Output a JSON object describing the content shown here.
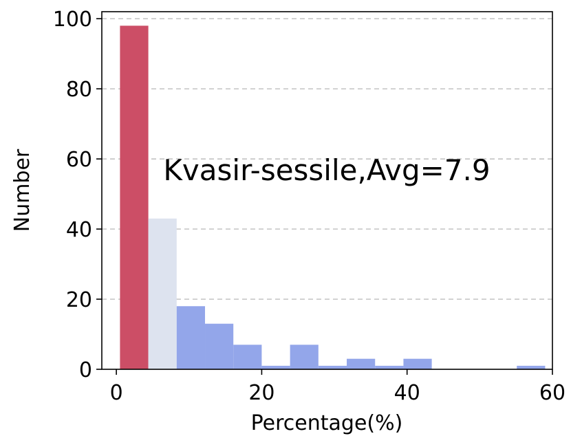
{
  "chart_data": {
    "type": "bar",
    "xlabel": "Percentage(%)",
    "ylabel": "Number",
    "annotation": "Kvasir-sessile,Avg=7.9",
    "xlim": [
      -2,
      60
    ],
    "ylim": [
      0,
      102
    ],
    "xticks": [
      0,
      20,
      40,
      60
    ],
    "yticks": [
      0,
      20,
      40,
      60,
      80,
      100
    ],
    "grid": "horizontal dashed",
    "bins": [
      {
        "x0": 0.5,
        "x1": 4.4,
        "value": 98,
        "color": "#cc4e66"
      },
      {
        "x0": 4.4,
        "x1": 8.3,
        "value": 43,
        "color": "#dde3ef"
      },
      {
        "x0": 8.3,
        "x1": 12.2,
        "value": 18,
        "color": "#93a6ea"
      },
      {
        "x0": 12.2,
        "x1": 16.1,
        "value": 13,
        "color": "#93a6ea"
      },
      {
        "x0": 16.1,
        "x1": 20.0,
        "value": 7,
        "color": "#93a6ea"
      },
      {
        "x0": 20.0,
        "x1": 23.9,
        "value": 1,
        "color": "#93a6ea"
      },
      {
        "x0": 23.9,
        "x1": 27.8,
        "value": 7,
        "color": "#93a6ea"
      },
      {
        "x0": 27.8,
        "x1": 31.7,
        "value": 1,
        "color": "#93a6ea"
      },
      {
        "x0": 31.7,
        "x1": 35.6,
        "value": 3,
        "color": "#93a6ea"
      },
      {
        "x0": 35.6,
        "x1": 39.5,
        "value": 1,
        "color": "#93a6ea"
      },
      {
        "x0": 39.5,
        "x1": 43.4,
        "value": 3,
        "color": "#93a6ea"
      },
      {
        "x0": 43.4,
        "x1": 47.3,
        "value": 0,
        "color": "#93a6ea"
      },
      {
        "x0": 47.3,
        "x1": 51.2,
        "value": 0,
        "color": "#93a6ea"
      },
      {
        "x0": 51.2,
        "x1": 55.1,
        "value": 0,
        "color": "#93a6ea"
      },
      {
        "x0": 55.1,
        "x1": 59.0,
        "value": 1,
        "color": "#93a6ea"
      }
    ]
  }
}
